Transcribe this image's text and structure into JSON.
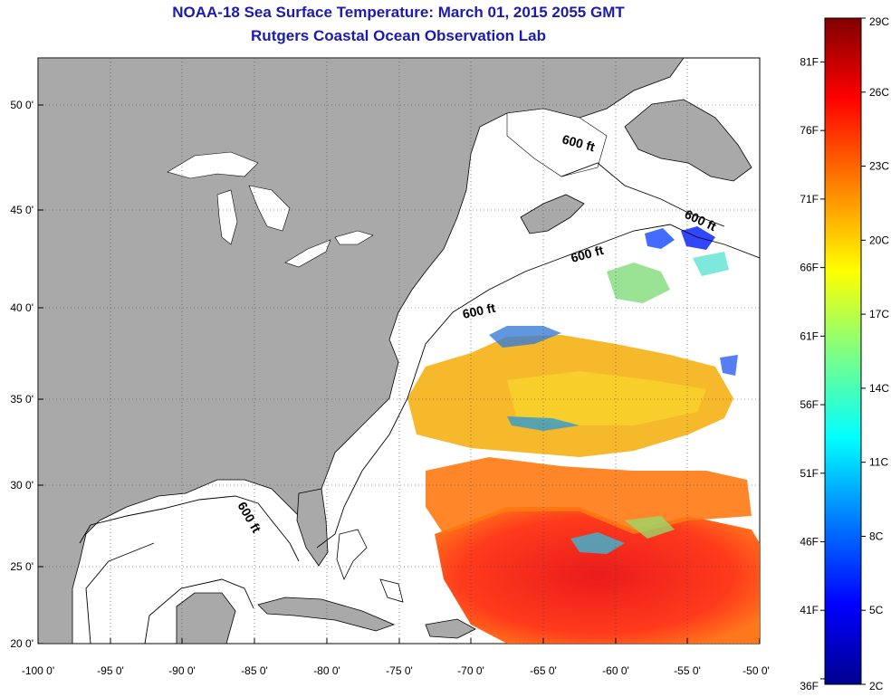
{
  "title_line1": "NOAA-18 Sea Surface Temperature:  March 01, 2015 2055 GMT",
  "title_line2": "Rutgers Coastal Ocean Observation Lab",
  "lat_labels": [
    "50 0'",
    "45 0'",
    "40 0'",
    "35 0'",
    "30 0'",
    "25 0'",
    "20 0'"
  ],
  "lon_labels": [
    "-100 0'",
    "-95 0'",
    "-90 0'",
    "-85 0'",
    "-80 0'",
    "-75 0'",
    "-70 0'",
    "-65 0'",
    "-60 0'",
    "-55 0'",
    "-50 0'"
  ],
  "contour_labels": [
    "600 ft",
    "600 ft",
    "600 ft",
    "600 ft",
    "600 ft"
  ],
  "colorbar": {
    "celsius_labels": [
      "29C",
      "26C",
      "23C",
      "20C",
      "17C",
      "14C",
      "11C",
      "8C",
      "5C",
      "2C"
    ],
    "fahrenheit_labels": [
      "81F",
      "76F",
      "71F",
      "66F",
      "61F",
      "56F",
      "51F",
      "46F",
      "41F",
      "36F"
    ],
    "min_c": 2,
    "max_c": 29,
    "colors": [
      "#00008f",
      "#0000ff",
      "#0080ff",
      "#00ffff",
      "#80ff80",
      "#ffff00",
      "#ff8000",
      "#ff0000",
      "#800000"
    ]
  },
  "colors": {
    "land": "#a9a9a9",
    "ocean": "#ffffff",
    "title": "#1b1bb0"
  }
}
